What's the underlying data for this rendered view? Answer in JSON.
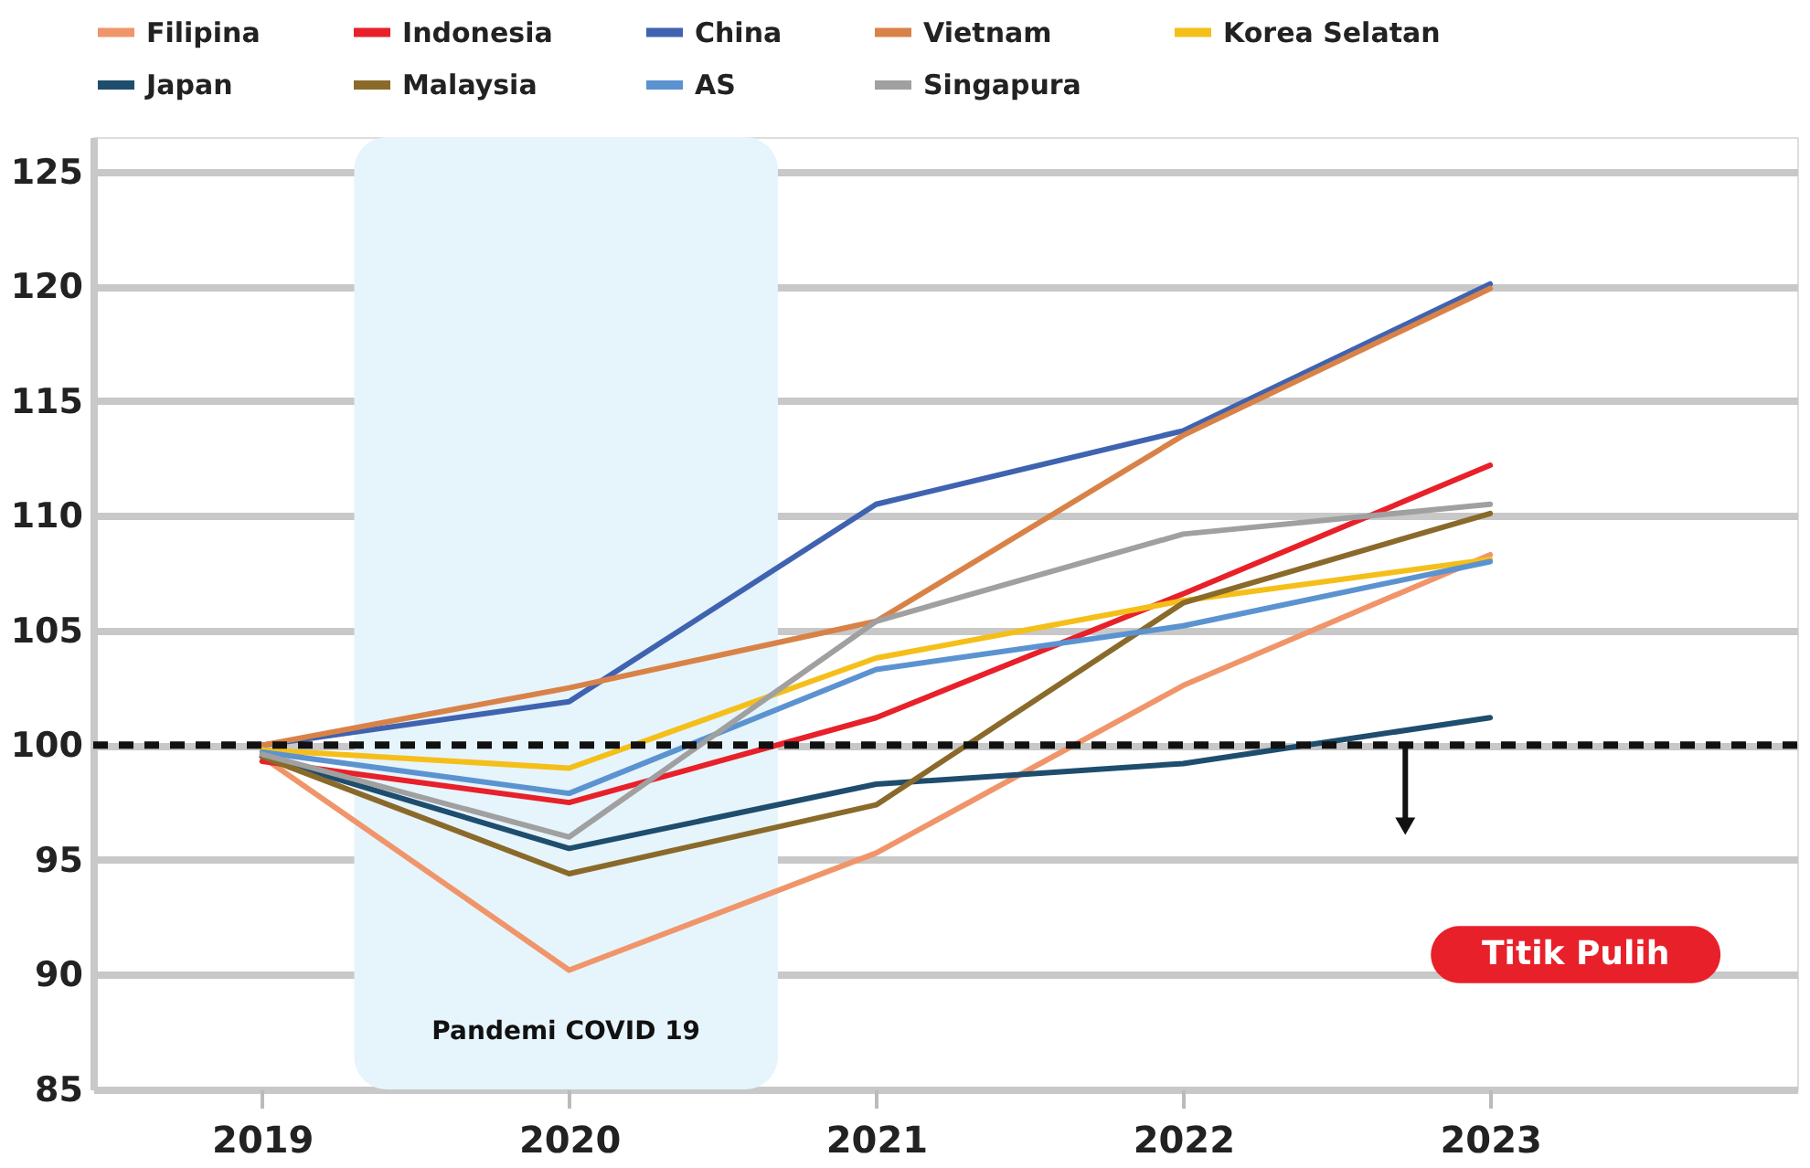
{
  "chart_data": {
    "type": "line",
    "x": [
      2019,
      2020,
      2021,
      2022,
      2023
    ],
    "xlim": [
      2018.45,
      2024.0
    ],
    "xticks": [
      2019,
      2020,
      2021,
      2022,
      2023
    ],
    "ylim": [
      85,
      126.5
    ],
    "yticks": [
      85,
      90,
      95,
      100,
      105,
      110,
      115,
      120,
      125
    ],
    "grid": "y",
    "legend": "top",
    "line_style": "solid",
    "marker": "none",
    "series": [
      {
        "name": "Filipina",
        "color": "#f0956a",
        "values": [
          99.5,
          90.2,
          95.3,
          102.6,
          108.3
        ]
      },
      {
        "name": "Indonesia",
        "color": "#e8202a",
        "values": [
          99.3,
          97.5,
          101.2,
          106.6,
          112.2
        ]
      },
      {
        "name": "China",
        "color": "#3f63b0",
        "values": [
          100,
          101.9,
          110.5,
          113.7,
          120.1
        ]
      },
      {
        "name": "Vietnam",
        "color": "#d98248",
        "values": [
          100,
          102.5,
          105.4,
          113.5,
          119.9
        ]
      },
      {
        "name": "Korea Selatan",
        "color": "#f5bf1a",
        "values": [
          99.8,
          99.0,
          103.8,
          106.3,
          108.1
        ]
      },
      {
        "name": "Japan",
        "color": "#1e4d6e",
        "values": [
          99.5,
          95.5,
          98.3,
          99.2,
          101.2
        ]
      },
      {
        "name": "Malaysia",
        "color": "#8a6a2a",
        "values": [
          99.5,
          94.4,
          97.4,
          106.2,
          110.1
        ]
      },
      {
        "name": "AS",
        "color": "#5b93d0",
        "values": [
          99.7,
          97.9,
          103.3,
          105.2,
          108.0
        ]
      },
      {
        "name": "Singapura",
        "color": "#a0a0a0",
        "values": [
          99.6,
          96.0,
          105.4,
          109.2,
          110.5
        ]
      }
    ],
    "ref_lines": [
      {
        "axis": "y",
        "value": 100,
        "color": "#111111",
        "line_style": "dashed"
      }
    ],
    "annotations": [
      "Titik Pulih"
    ],
    "bands": [
      {
        "axis": "x",
        "from": 2019.3,
        "to": 2020.68,
        "label": "Pandemi COVID 19",
        "color": "#e6f4fb"
      }
    ]
  }
}
